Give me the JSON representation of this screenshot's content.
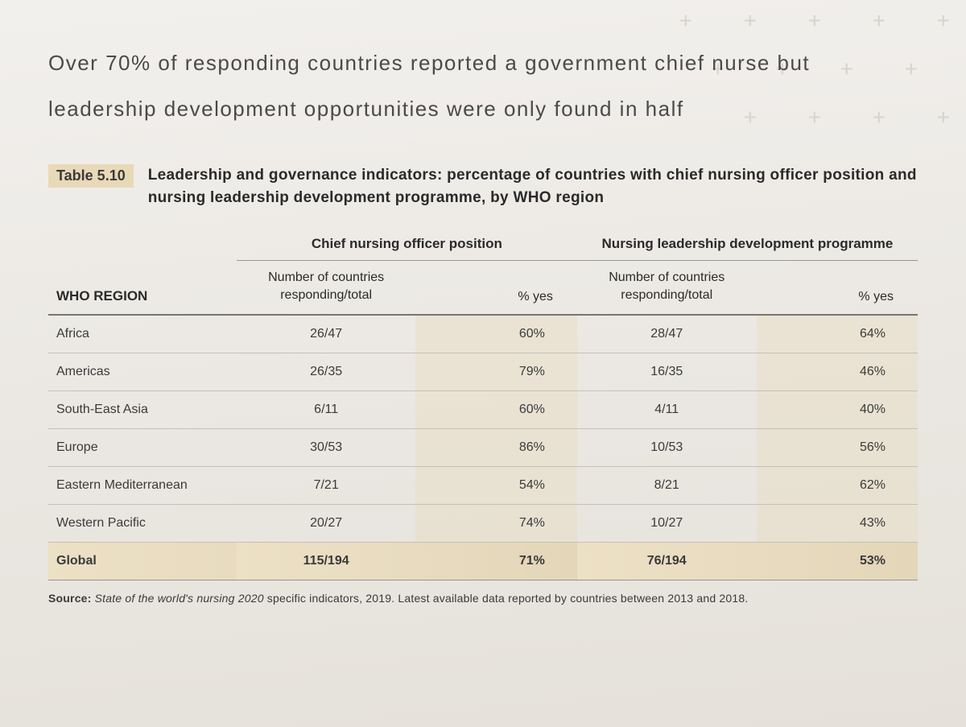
{
  "headline": "Over 70% of responding countries reported a government chief nurse but leadership development opportunities were only found in half",
  "table_label": "Table 5.10",
  "table_caption": "Leadership and governance indicators: percentage of countries with chief nursing officer position and nursing leadership development programme, by WHO region",
  "columns": {
    "region_header": "WHO REGION",
    "group1": "Chief nursing officer position",
    "group2": "Nursing leadership development programme",
    "num_label_line1": "Number of countries",
    "num_label_line2": "responding/total",
    "pct_label": "% yes"
  },
  "rows": [
    {
      "region": "Africa",
      "num1": "26/47",
      "pct1": "60%",
      "num2": "28/47",
      "pct2": "64%"
    },
    {
      "region": "Americas",
      "num1": "26/35",
      "pct1": "79%",
      "num2": "16/35",
      "pct2": "46%"
    },
    {
      "region": "South-East Asia",
      "num1": "6/11",
      "pct1": "60%",
      "num2": "4/11",
      "pct2": "40%"
    },
    {
      "region": "Europe",
      "num1": "30/53",
      "pct1": "86%",
      "num2": "10/53",
      "pct2": "56%"
    },
    {
      "region": "Eastern Mediterranean",
      "num1": "7/21",
      "pct1": "54%",
      "num2": "8/21",
      "pct2": "62%"
    },
    {
      "region": "Western Pacific",
      "num1": "20/27",
      "pct1": "74%",
      "num2": "10/27",
      "pct2": "43%"
    }
  ],
  "total_row": {
    "region": "Global",
    "num1": "115/194",
    "pct1": "71%",
    "num2": "76/194",
    "pct2": "53%"
  },
  "source": {
    "label": "Source:",
    "italic": "State of the world's nursing 2020",
    "rest": " specific indicators, 2019. Latest available data reported by countries between 2013 and 2018."
  },
  "styling": {
    "background_gradient": [
      "#f2f0ed",
      "#e5e1da"
    ],
    "highlight_bg": "#e8d9b8",
    "pct_cell_tint": "rgba(232,217,184,0.35)",
    "text_color": "#3a3a3a",
    "headline_color": "#4a4a4a",
    "border_color_light": "#c5c0b6",
    "border_color_dark": "#7a766e",
    "cross_color": "#d8d4cc",
    "headline_fontsize": 26,
    "caption_fontsize": 19,
    "body_fontsize": 16,
    "source_fontsize": 14
  }
}
